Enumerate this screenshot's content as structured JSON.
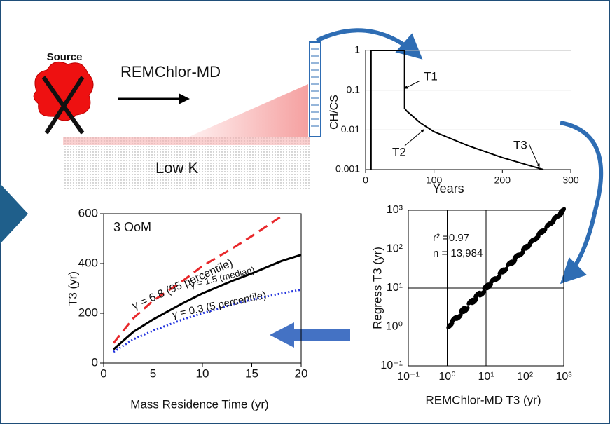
{
  "diagram": {
    "source": "Source",
    "model": "REMChlor-MD",
    "zone": "Low K"
  },
  "chart_data": [
    {
      "type": "line",
      "xlabel": "Years",
      "ylabel": "CH/CS",
      "ylog": true,
      "grid": true,
      "xlim": [
        0,
        300
      ],
      "xticks": [
        0,
        100,
        200,
        300
      ],
      "ylim": [
        0.001,
        1
      ],
      "yticks": [
        0.001,
        0.01,
        0.1,
        1
      ],
      "annotations": [
        "T1",
        "T2",
        "T3"
      ],
      "series": [
        {
          "color": "#000000",
          "line_style": "solid",
          "x": [
            8,
            8,
            57,
            57,
            60,
            80,
            100,
            150,
            200,
            260
          ],
          "values": [
            0.001,
            1,
            1,
            0.035,
            0.03,
            0.015,
            0.009,
            0.004,
            0.002,
            0.001
          ]
        }
      ]
    },
    {
      "type": "line",
      "xlabel": "Mass Residence Time (yr)",
      "ylabel": "T3 (yr)",
      "grid": false,
      "xlim": [
        0,
        20
      ],
      "xticks": [
        0,
        5,
        10,
        15,
        20
      ],
      "ylim": [
        0,
        600
      ],
      "yticks": [
        0,
        200,
        400,
        600
      ],
      "annotations": [
        "3 OoM"
      ],
      "series": [
        {
          "name": "γ = 6.8 (95 percentile)",
          "color": "#e8282b",
          "line_style": "dashed",
          "x": [
            1,
            3,
            5,
            8,
            10,
            13,
            15,
            18
          ],
          "values": [
            80,
            180,
            250,
            330,
            390,
            460,
            510,
            590
          ]
        },
        {
          "name": "γ = 1.5 (median)",
          "color": "#000000",
          "line_style": "solid",
          "x": [
            1,
            3,
            5,
            8,
            10,
            13,
            15,
            18,
            20
          ],
          "values": [
            55,
            125,
            175,
            240,
            280,
            330,
            360,
            410,
            435
          ]
        },
        {
          "name": "γ = 0.3 (5 percentile)",
          "color": "#2233dd",
          "line_style": "dotted",
          "x": [
            1,
            3,
            5,
            8,
            10,
            13,
            15,
            18,
            20
          ],
          "values": [
            45,
            95,
            130,
            175,
            200,
            235,
            255,
            280,
            295
          ]
        }
      ]
    },
    {
      "type": "scatter",
      "xlabel": "REMChlor-MD T3 (yr)",
      "ylabel": "Regress T3 (yr)",
      "xlog": true,
      "ylog": true,
      "grid": true,
      "xlim": [
        0.1,
        1000
      ],
      "xticks": [
        {
          "value": 0.1,
          "label": "10⁻¹"
        },
        {
          "value": 1,
          "label": "10⁰"
        },
        {
          "value": 10,
          "label": "10¹"
        },
        {
          "value": 100,
          "label": "10²"
        },
        {
          "value": 1000,
          "label": "10³"
        }
      ],
      "ylim": [
        0.1,
        1000
      ],
      "yticks": [
        {
          "value": 0.1,
          "label": "10⁻¹"
        },
        {
          "value": 1,
          "label": "10⁰"
        },
        {
          "value": 10,
          "label": "10¹"
        },
        {
          "value": 100,
          "label": "10²"
        },
        {
          "value": 1000,
          "label": "10³"
        }
      ],
      "annotations": [
        "r² =0.97",
        "n = 13,984"
      ],
      "series": [
        {
          "color": "#000000",
          "x": [
            1.2,
            1.5,
            2,
            2.5,
            3,
            4,
            5,
            6,
            8,
            10,
            12,
            15,
            20,
            25,
            30,
            40,
            50,
            60,
            80,
            100,
            120,
            150,
            200,
            250,
            300,
            400,
            500,
            600,
            800,
            900
          ],
          "values": [
            1.1,
            1.6,
            1.8,
            2.8,
            2.7,
            4.5,
            4.6,
            6.8,
            7.2,
            11,
            11,
            16,
            18,
            27,
            28,
            43,
            46,
            65,
            75,
            110,
            115,
            160,
            190,
            270,
            290,
            420,
            480,
            640,
            760,
            950
          ]
        }
      ]
    }
  ]
}
